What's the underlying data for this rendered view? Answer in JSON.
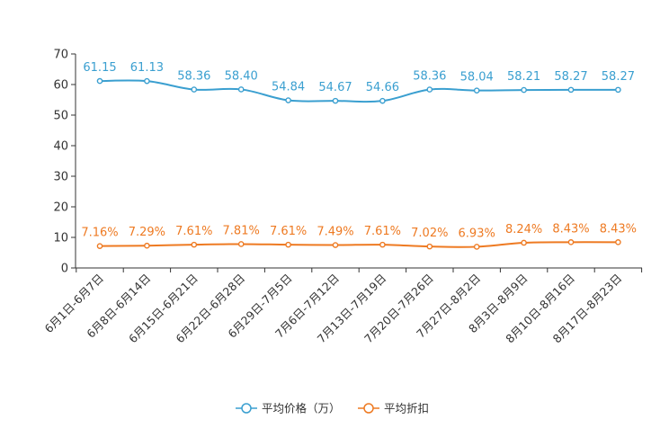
{
  "chart_data": {
    "type": "line",
    "title": "",
    "xlabel": "",
    "ylabel": "",
    "ylim": [
      0,
      70
    ],
    "yticks": [
      0,
      10,
      20,
      30,
      40,
      50,
      60,
      70
    ],
    "grid": false,
    "legend_position": "bottom",
    "categories": [
      "6月1日-6月7日",
      "6月8日-6月14日",
      "6月15日-6月21日",
      "6月22日-6月28日",
      "6月29日-7月5日",
      "7月6日-7月12日",
      "7月13日-7月19日",
      "7月20日-7月26日",
      "7月27日-8月2日",
      "8月3日-8月9日",
      "8月10日-8月16日",
      "8月17日-8月23日"
    ],
    "series": [
      {
        "name": "平均价格（万）",
        "color": "#3a9fd0",
        "values": [
          61.15,
          61.13,
          58.36,
          58.4,
          54.84,
          54.67,
          54.66,
          58.36,
          58.04,
          58.21,
          58.27,
          58.27
        ],
        "labels": [
          "61.15",
          "61.13",
          "58.36",
          "58.40",
          "54.84",
          "54.67",
          "54.66",
          "58.36",
          "58.04",
          "58.21",
          "58.27",
          "58.27"
        ]
      },
      {
        "name": "平均折扣",
        "color": "#ee7a22",
        "values": [
          7.16,
          7.29,
          7.61,
          7.81,
          7.61,
          7.49,
          7.61,
          7.02,
          6.93,
          8.24,
          8.43,
          8.43
        ],
        "labels": [
          "7.16%",
          "7.29%",
          "7.61%",
          "7.81%",
          "7.61%",
          "7.49%",
          "7.61%",
          "7.02%",
          "6.93%",
          "8.24%",
          "8.43%",
          "8.43%"
        ]
      }
    ]
  }
}
